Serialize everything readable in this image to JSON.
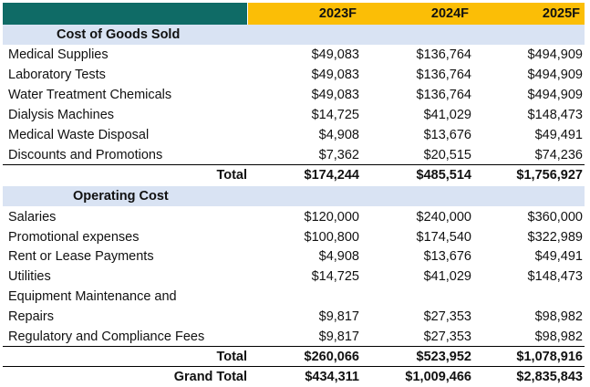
{
  "colors": {
    "header_left": "#0f6b66",
    "header_right": "#fbbe06",
    "section_band": "#d9e3f3"
  },
  "header": {
    "years": [
      "2023F",
      "2024F",
      "2025F"
    ]
  },
  "cogs": {
    "title": "Cost of Goods Sold",
    "rows": [
      {
        "label": "Medical Supplies",
        "v": [
          "$49,083",
          "$136,764",
          "$494,909"
        ]
      },
      {
        "label": "Laboratory Tests",
        "v": [
          "$49,083",
          "$136,764",
          "$494,909"
        ]
      },
      {
        "label": "Water Treatment Chemicals",
        "v": [
          "$49,083",
          "$136,764",
          "$494,909"
        ]
      },
      {
        "label": "Dialysis Machines",
        "v": [
          "$14,725",
          "$41,029",
          "$148,473"
        ]
      },
      {
        "label": "Medical Waste Disposal",
        "v": [
          "$4,908",
          "$13,676",
          "$49,491"
        ]
      },
      {
        "label": "Discounts and Promotions",
        "v": [
          "$7,362",
          "$20,515",
          "$74,236"
        ]
      }
    ],
    "total": {
      "label": "Total",
      "v": [
        "$174,244",
        "$485,514",
        "$1,756,927"
      ]
    }
  },
  "opex": {
    "title": "Operating Cost",
    "rows": [
      {
        "label": "Salaries",
        "v": [
          "$120,000",
          "$240,000",
          "$360,000"
        ]
      },
      {
        "label": "Promotional expenses",
        "v": [
          "$100,800",
          "$174,540",
          "$322,989"
        ]
      },
      {
        "label": "Rent or Lease Payments",
        "v": [
          "$4,908",
          "$13,676",
          "$49,491"
        ]
      },
      {
        "label": "Utilities",
        "v": [
          "$14,725",
          "$41,029",
          "$148,473"
        ]
      },
      {
        "label": "Equipment Maintenance and",
        "v": [
          "",
          "",
          ""
        ]
      },
      {
        "label": "Repairs",
        "v": [
          "$9,817",
          "$27,353",
          "$98,982"
        ]
      },
      {
        "label": "Regulatory and Compliance Fees",
        "v": [
          "$9,817",
          "$27,353",
          "$98,982"
        ]
      }
    ],
    "total": {
      "label": "Total",
      "v": [
        "$260,066",
        "$523,952",
        "$1,078,916"
      ]
    }
  },
  "grand_total": {
    "label": "Grand Total",
    "v": [
      "$434,311",
      "$1,009,466",
      "$2,835,843"
    ]
  }
}
